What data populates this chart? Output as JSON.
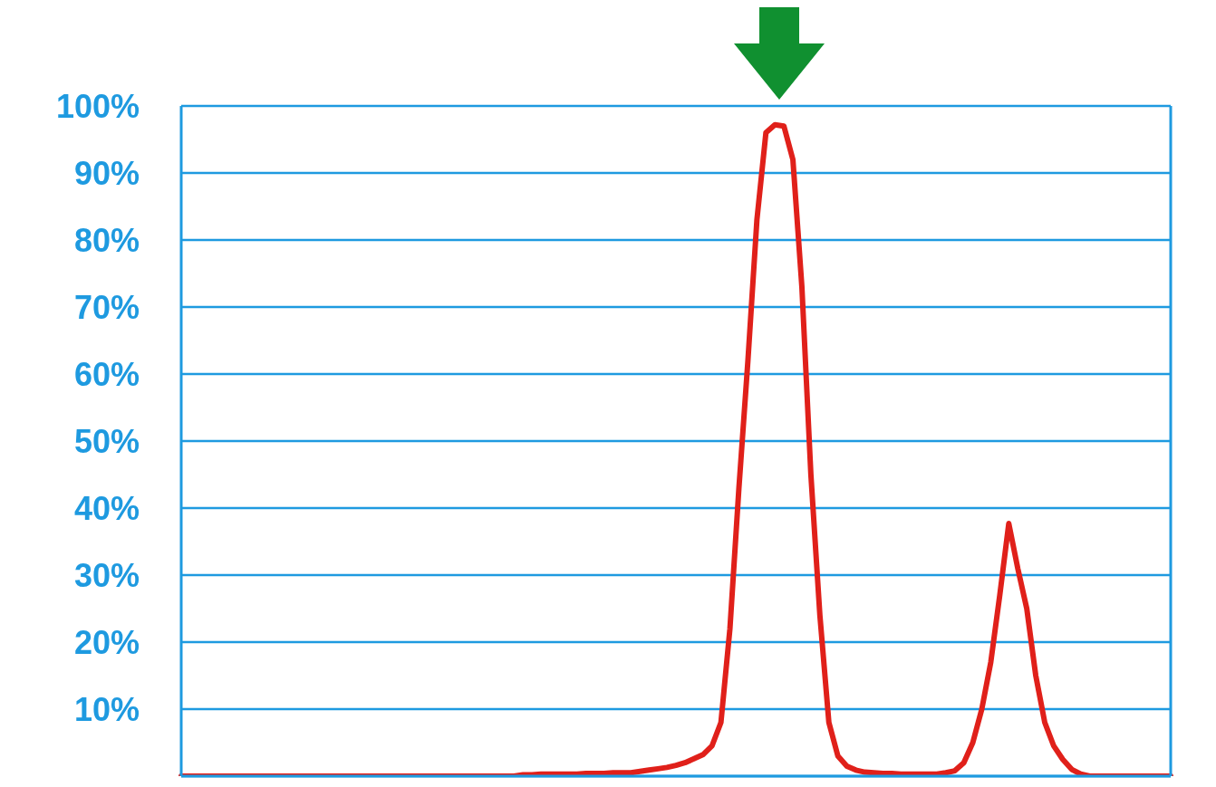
{
  "chart_data": {
    "type": "line",
    "categories": [
      null,
      null,
      null,
      null,
      null,
      null,
      null,
      null,
      null,
      null,
      null,
      null,
      null,
      null,
      null,
      null,
      null,
      null,
      null,
      null,
      null,
      null,
      null,
      null,
      null,
      null,
      null,
      null,
      null,
      null,
      null,
      null,
      null,
      null,
      null,
      null,
      null,
      null,
      null,
      null,
      null,
      null,
      null,
      null,
      null,
      null,
      null,
      null,
      null,
      null,
      null,
      null,
      null,
      null,
      null,
      null,
      null,
      null,
      null,
      null,
      null,
      null,
      null,
      null,
      null,
      null,
      null,
      null,
      null,
      null,
      null,
      null,
      null,
      null,
      null,
      null,
      null,
      null,
      null,
      null,
      null,
      null,
      null,
      null,
      null,
      null,
      null,
      null,
      null,
      null,
      null,
      null,
      null,
      null,
      null,
      null,
      null,
      null,
      null,
      null,
      null,
      null,
      null,
      null,
      null,
      null,
      null,
      null,
      null,
      null,
      null
    ],
    "series": [
      {
        "color": "#e0201a",
        "values": [
          0,
          0,
          0,
          0,
          0,
          0,
          0,
          0,
          0,
          0,
          0,
          0,
          0,
          0,
          0,
          0,
          0,
          0,
          0,
          0,
          0,
          0,
          0,
          0,
          0,
          0,
          0,
          0,
          0,
          0,
          0,
          0,
          0,
          0,
          0,
          0,
          0,
          0,
          0.2,
          0.2,
          0.3,
          0.3,
          0.3,
          0.3,
          0.3,
          0.4,
          0.4,
          0.4,
          0.5,
          0.5,
          0.5,
          0.7,
          0.9,
          1.1,
          1.3,
          1.6,
          2.0,
          2.6,
          3.2,
          4.5,
          8,
          22,
          43,
          62,
          83,
          96,
          97.2,
          97,
          92,
          73,
          45,
          24,
          8,
          3,
          1.5,
          0.9,
          0.6,
          0.5,
          0.4,
          0.4,
          0.3,
          0.3,
          0.3,
          0.3,
          0.3,
          0.5,
          0.8,
          2,
          5,
          10,
          17,
          27,
          37.7,
          31,
          25,
          15,
          8,
          4.5,
          2.5,
          1,
          0.3,
          0,
          0,
          0,
          0,
          0,
          0,
          0,
          0,
          0,
          0
        ]
      }
    ],
    "ylim": [
      0,
      100
    ],
    "yticks": [
      {
        "value": 10,
        "label": "10%"
      },
      {
        "value": 20,
        "label": "20%"
      },
      {
        "value": 30,
        "label": "30%"
      },
      {
        "value": 40,
        "label": "40%"
      },
      {
        "value": 50,
        "label": "50%"
      },
      {
        "value": 60,
        "label": "60%"
      },
      {
        "value": 70,
        "label": "70%"
      },
      {
        "value": 80,
        "label": "80%"
      },
      {
        "value": 90,
        "label": "90%"
      },
      {
        "value": 100,
        "label": "100%"
      }
    ],
    "grid": "y",
    "tick_labels": "y",
    "marker": "none",
    "line_style": "solid"
  }
}
